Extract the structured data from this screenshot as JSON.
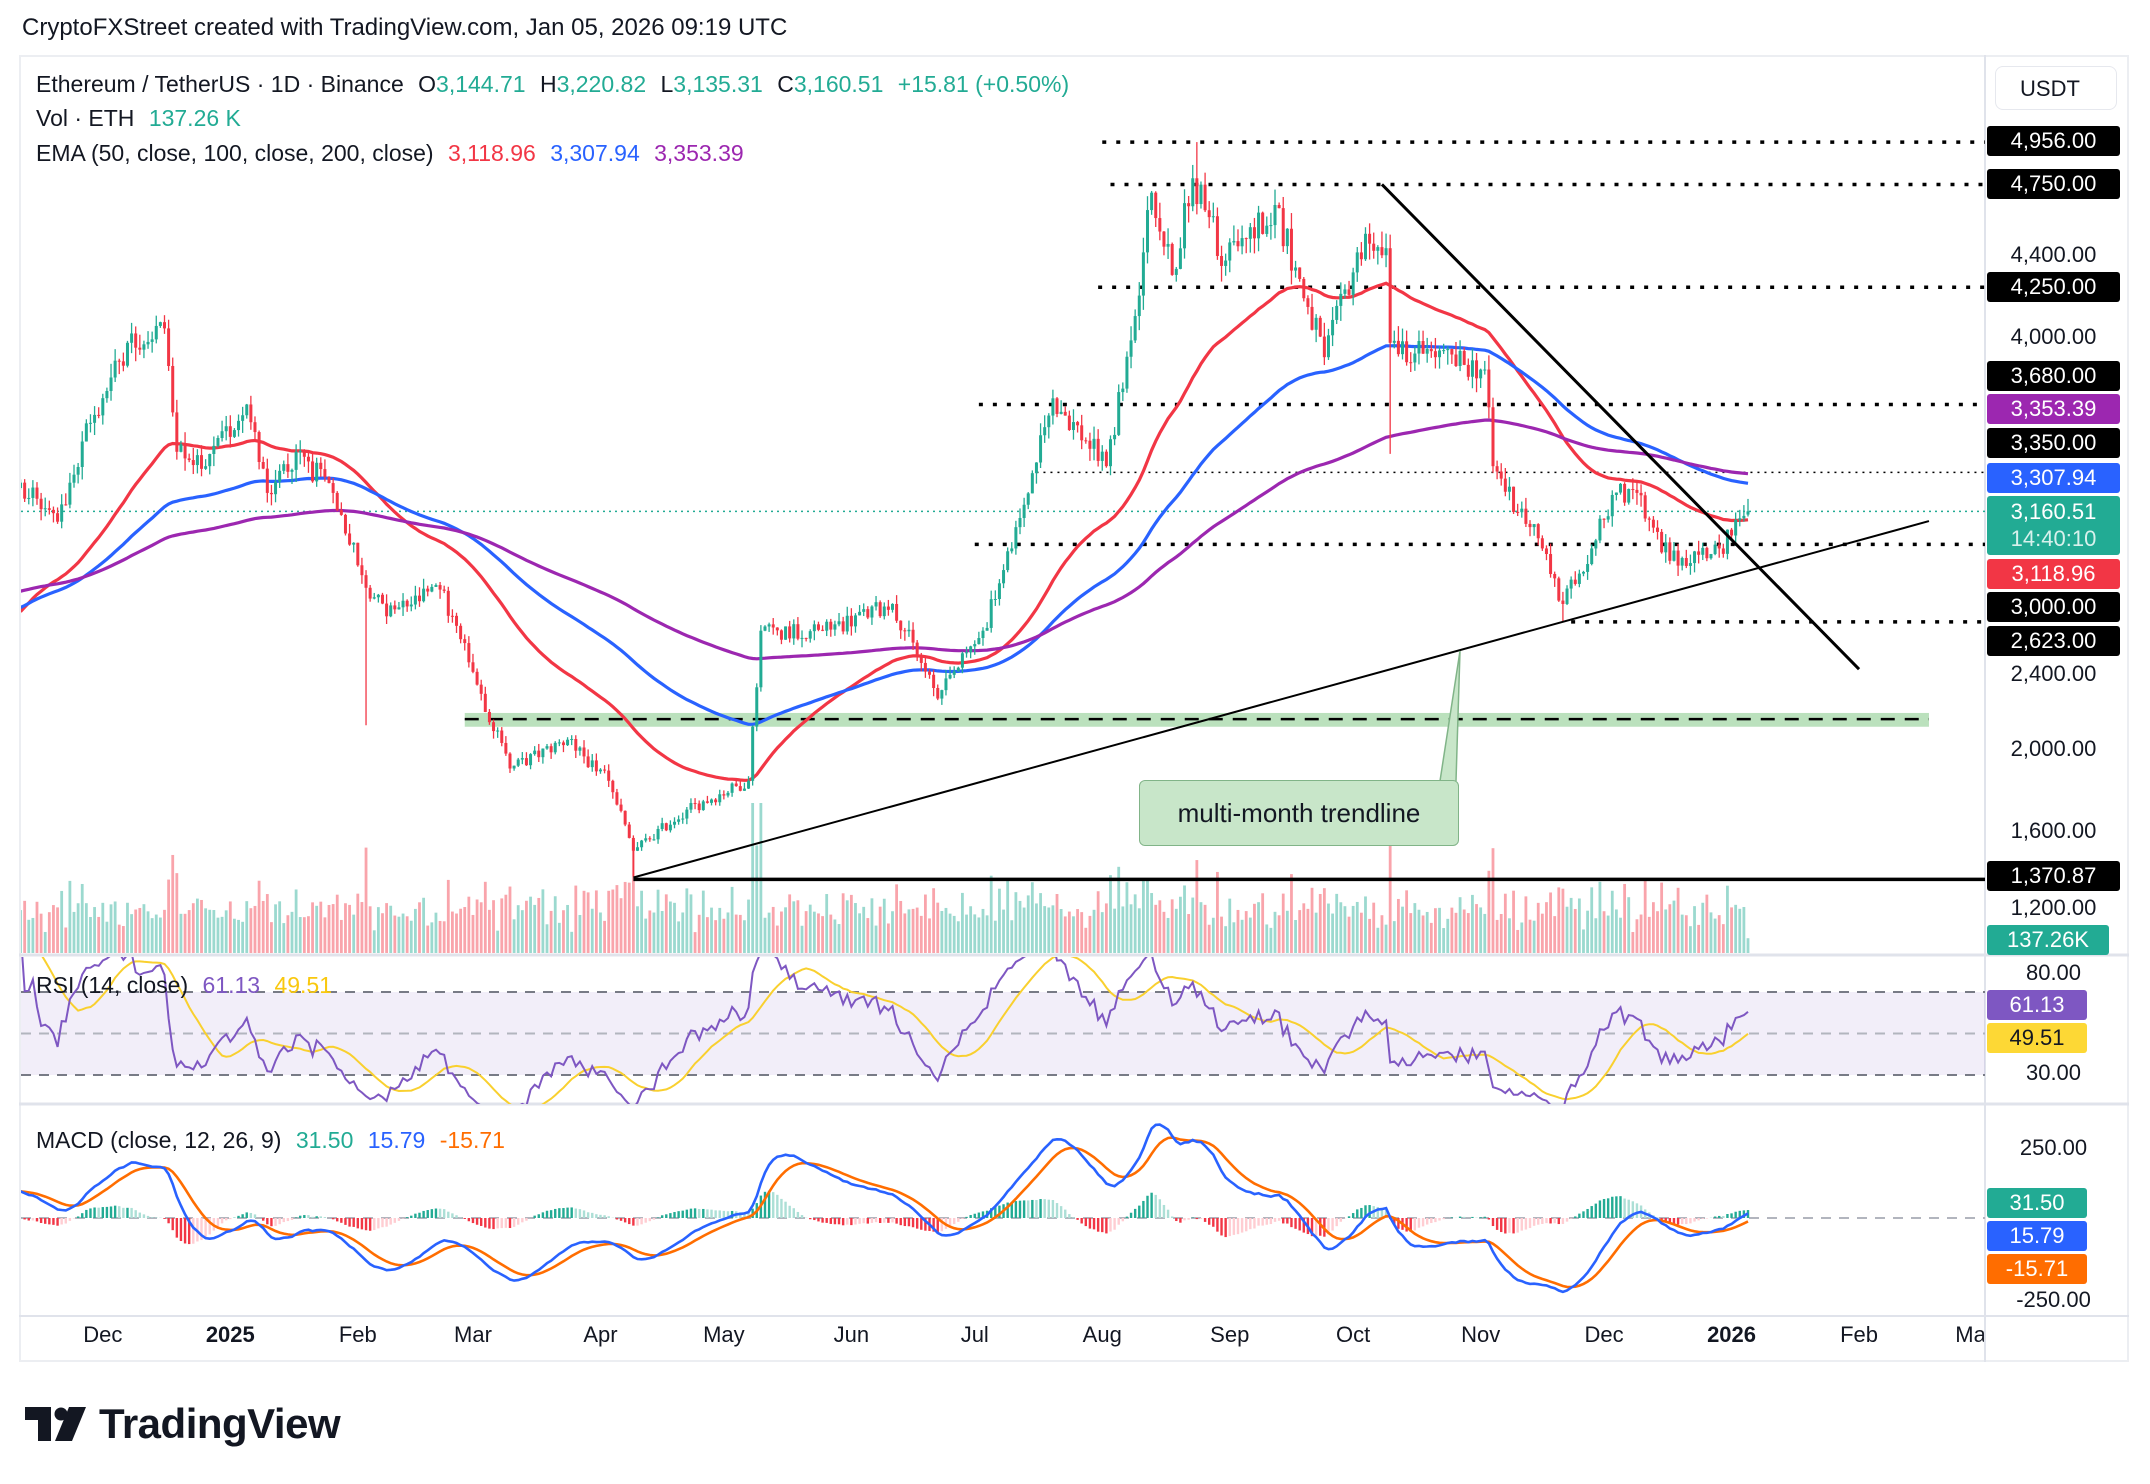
{
  "header": {
    "attribution": "CryptoFXStreet created with TradingView.com, Jan 05, 2026 09:19 UTC"
  },
  "legend": {
    "symbol": "Ethereum / TetherUS · 1D · Binance",
    "o_label": "O",
    "o": "3,144.71",
    "h_label": "H",
    "h": "3,220.82",
    "l_label": "L",
    "l": "3,135.31",
    "c_label": "C",
    "c": "3,160.51",
    "change": "+15.81 (+0.50%)",
    "vol_label": "Vol · ETH",
    "vol": "137.26 K",
    "ema_label": "EMA (50, close, 100, close, 200, close)",
    "ema50": "3,118.96",
    "ema100": "3,307.94",
    "ema200": "3,353.39",
    "rsi_label": "RSI (14, close)",
    "rsi": "61.13",
    "rsi_ma": "49.51",
    "macd_label": "MACD (close, 12, 26, 9)",
    "macd_hist": "31.50",
    "macd": "15.79",
    "macd_signal": "-15.71"
  },
  "currency_button": "USDT",
  "price_axis": {
    "ticks": [
      "4,400.00",
      "4,000.00",
      "2,400.00",
      "2,000.00",
      "1,600.00",
      "1,200.00"
    ],
    "level_labels": [
      "4,956.00",
      "4,750.00",
      "4,250.00",
      "3,680.00",
      "3,350.00",
      "3,000.00",
      "2,623.00",
      "1,370.87"
    ],
    "ema200_label": "3,353.39",
    "ema100_label": "3,307.94",
    "last_price": "3,160.51",
    "countdown": "14:40:10",
    "ema50_label": "3,118.96",
    "volume_label": "137.26K"
  },
  "rsi_axis": {
    "ticks": [
      "80.00",
      "30.00"
    ],
    "rsi": "61.13",
    "rsi_ma": "49.51"
  },
  "macd_axis": {
    "ticks": [
      "250.00",
      "-250.00"
    ],
    "hist": "31.50",
    "macd": "15.79",
    "signal": "-15.71"
  },
  "time_axis": [
    {
      "label": "Dec",
      "date": "2024-12-01",
      "bold": false
    },
    {
      "label": "2025",
      "date": "2025-01-01",
      "bold": true
    },
    {
      "label": "Feb",
      "date": "2025-02-01",
      "bold": false
    },
    {
      "label": "Mar",
      "date": "2025-03-01",
      "bold": false
    },
    {
      "label": "Apr",
      "date": "2025-04-01",
      "bold": false
    },
    {
      "label": "May",
      "date": "2025-05-01",
      "bold": false
    },
    {
      "label": "Jun",
      "date": "2025-06-01",
      "bold": false
    },
    {
      "label": "Jul",
      "date": "2025-07-01",
      "bold": false
    },
    {
      "label": "Aug",
      "date": "2025-08-01",
      "bold": false
    },
    {
      "label": "Sep",
      "date": "2025-09-01",
      "bold": false
    },
    {
      "label": "Oct",
      "date": "2025-10-01",
      "bold": false
    },
    {
      "label": "Nov",
      "date": "2025-11-01",
      "bold": false
    },
    {
      "label": "Dec",
      "date": "2025-12-01",
      "bold": false
    },
    {
      "label": "2026",
      "date": "2026-01-01",
      "bold": true
    },
    {
      "label": "Feb",
      "date": "2026-02-01",
      "bold": false
    },
    {
      "label": "Mar",
      "date": "2026-03-01",
      "bold": false
    }
  ],
  "annotation": {
    "callout": "multi-month trendline"
  },
  "logo": {
    "text": "TradingView"
  },
  "colors": {
    "up": "#22ab94",
    "down": "#f23645",
    "ema50": "#f23645",
    "ema100": "#2962ff",
    "ema200": "#9c27b0",
    "rsi": "#7e57c2",
    "rsi_ma": "#f9d02f",
    "macd": "#2962ff",
    "signal": "#ff6d00",
    "zone": "#b7dfb9"
  },
  "chart_data": {
    "type": "candlestick",
    "title": "Ethereum / TetherUS · 1D · Binance",
    "y_range": [
      1100,
      5300
    ],
    "x_range": [
      "2024-11-11",
      "2026-03-10"
    ],
    "last_candle": {
      "date": "2026-01-05",
      "open": 3144.71,
      "high": 3220.82,
      "low": 3135.31,
      "close": 3160.51,
      "volume": 137260
    },
    "approx_close_path": [
      [
        "2024-11-11",
        3300
      ],
      [
        "2024-11-20",
        3110
      ],
      [
        "2024-11-26",
        3500
      ],
      [
        "2024-12-07",
        3980
      ],
      [
        "2024-12-16",
        4050
      ],
      [
        "2024-12-19",
        3450
      ],
      [
        "2024-12-26",
        3380
      ],
      [
        "2025-01-05",
        3680
      ],
      [
        "2025-01-10",
        3250
      ],
      [
        "2025-01-17",
        3450
      ],
      [
        "2025-01-26",
        3250
      ],
      [
        "2025-02-02",
        2850
      ],
      [
        "2025-02-08",
        2650
      ],
      [
        "2025-02-21",
        2780
      ],
      [
        "2025-03-01",
        2380
      ],
      [
        "2025-03-10",
        1910
      ],
      [
        "2025-03-24",
        2050
      ],
      [
        "2025-04-03",
        1850
      ],
      [
        "2025-04-09",
        1510
      ],
      [
        "2025-04-22",
        1710
      ],
      [
        "2025-05-07",
        1850
      ],
      [
        "2025-05-10",
        2580
      ],
      [
        "2025-05-25",
        2580
      ],
      [
        "2025-06-11",
        2710
      ],
      [
        "2025-06-22",
        2250
      ],
      [
        "2025-07-03",
        2580
      ],
      [
        "2025-07-10",
        2980
      ],
      [
        "2025-07-20",
        3710
      ],
      [
        "2025-08-02",
        3380
      ],
      [
        "2025-08-09",
        4110
      ],
      [
        "2025-08-13",
        4710
      ],
      [
        "2025-08-18",
        4310
      ],
      [
        "2025-08-23",
        4780
      ],
      [
        "2025-08-31",
        4380
      ],
      [
        "2025-09-12",
        4650
      ],
      [
        "2025-09-24",
        3910
      ],
      [
        "2025-10-04",
        4510
      ],
      [
        "2025-10-09",
        4440
      ],
      [
        "2025-10-10",
        3980
      ],
      [
        "2025-10-21",
        3910
      ],
      [
        "2025-11-02",
        3850
      ],
      [
        "2025-11-04",
        3380
      ],
      [
        "2025-11-16",
        2980
      ],
      [
        "2025-11-21",
        2710
      ],
      [
        "2025-11-28",
        2980
      ],
      [
        "2025-12-03",
        3240
      ],
      [
        "2025-12-09",
        3250
      ],
      [
        "2025-12-17",
        2920
      ],
      [
        "2025-12-29",
        2980
      ],
      [
        "2026-01-05",
        3160.51
      ]
    ],
    "notable_wicks": [
      {
        "date": "2025-02-03",
        "low": 2120
      },
      {
        "date": "2025-04-09",
        "low": 1385
      },
      {
        "date": "2025-08-24",
        "high": 4956
      },
      {
        "date": "2025-10-10",
        "low": 3440
      },
      {
        "date": "2025-11-21",
        "low": 2623
      }
    ],
    "ema_periods": [
      50,
      100,
      200
    ],
    "ema_last": [
      3118.96,
      3307.94,
      3353.39
    ],
    "horizontal_levels": [
      {
        "price": 4956,
        "from": "2025-08-01",
        "style": "dotted"
      },
      {
        "price": 4750,
        "from": "2025-08-03",
        "style": "dotted"
      },
      {
        "price": 4250,
        "from": "2025-07-31",
        "style": "dotted"
      },
      {
        "price": 3680,
        "from": "2025-07-02",
        "style": "dotted"
      },
      {
        "price": 3350,
        "from": "2025-07-16",
        "style": "thin-dotted"
      },
      {
        "price": 3000,
        "from": "2025-07-01",
        "style": "dotted"
      },
      {
        "price": 2623,
        "from": "2025-11-23",
        "style": "dotted"
      },
      {
        "price": 1370.87,
        "from": "2025-04-09",
        "style": "solid"
      }
    ],
    "support_zone": {
      "from": "2025-02-27",
      "to": "2026-02-18",
      "low": 2113,
      "high": 2180,
      "mid": 2150
    },
    "trendlines": [
      {
        "name": "descending",
        "points": [
          [
            "2025-10-08",
            4750
          ],
          [
            "2026-02-01",
            2393
          ]
        ]
      },
      {
        "name": "multi-month trendline",
        "points": [
          [
            "2025-04-09",
            1380
          ],
          [
            "2026-02-18",
            3113
          ]
        ]
      }
    ],
    "rsi": {
      "period": 14,
      "last": 61.13,
      "ma_last": 49.51,
      "bands": [
        70,
        50,
        30
      ],
      "y_range": [
        23,
        87
      ]
    },
    "macd": {
      "fast": 12,
      "slow": 26,
      "signal": 9,
      "hist_last": 31.5,
      "macd_last": 15.79,
      "signal_last": -15.71
    }
  }
}
